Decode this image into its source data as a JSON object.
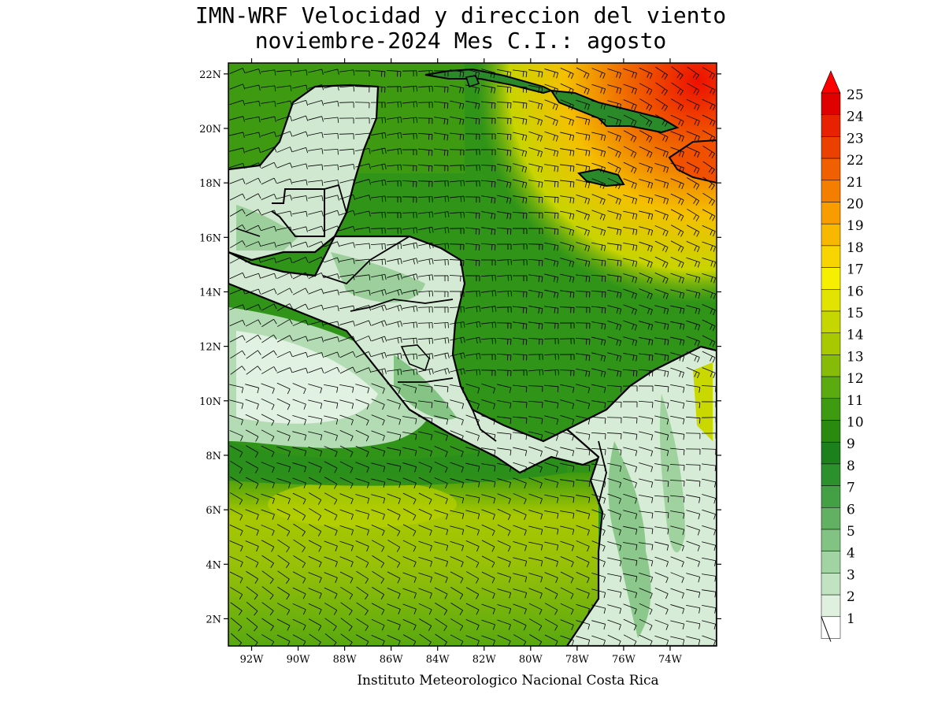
{
  "title": {
    "line1": "IMN-WRF Velocidad y direccion del viento",
    "line2": "noviembre-2024 Mes C.I.: agosto"
  },
  "credit": "Instituto Meteorologico Nacional Costa Rica",
  "map": {
    "lat_range": [
      1,
      22.4
    ],
    "lon_range": [
      -93,
      -72
    ],
    "lat_ticks": [
      "2N",
      "4N",
      "6N",
      "8N",
      "10N",
      "12N",
      "14N",
      "16N",
      "18N",
      "20N",
      "22N"
    ],
    "lon_ticks": [
      "92W",
      "90W",
      "88W",
      "86W",
      "84W",
      "82W",
      "80W",
      "78W",
      "76W",
      "74W"
    ]
  },
  "colorbar": {
    "labels": [
      "1",
      "2",
      "3",
      "4",
      "5",
      "6",
      "7",
      "8",
      "9",
      "10",
      "11",
      "12",
      "13",
      "14",
      "15",
      "16",
      "17",
      "18",
      "19",
      "20",
      "21",
      "22",
      "23",
      "24",
      "25"
    ],
    "colors": [
      "#ffffff",
      "#dff0df",
      "#c2e3c2",
      "#a2d3a2",
      "#82c282",
      "#62b062",
      "#44a044",
      "#2c902c",
      "#1c801c",
      "#2a8a10",
      "#3e9a10",
      "#5aaa10",
      "#86bc08",
      "#a8c800",
      "#c6d600",
      "#e2e400",
      "#f6f000",
      "#f8d400",
      "#f8b800",
      "#f89c00",
      "#f47e00",
      "#f06000",
      "#ec4000",
      "#e82200",
      "#e00000"
    ],
    "arrow_color": "#ff0000"
  }
}
